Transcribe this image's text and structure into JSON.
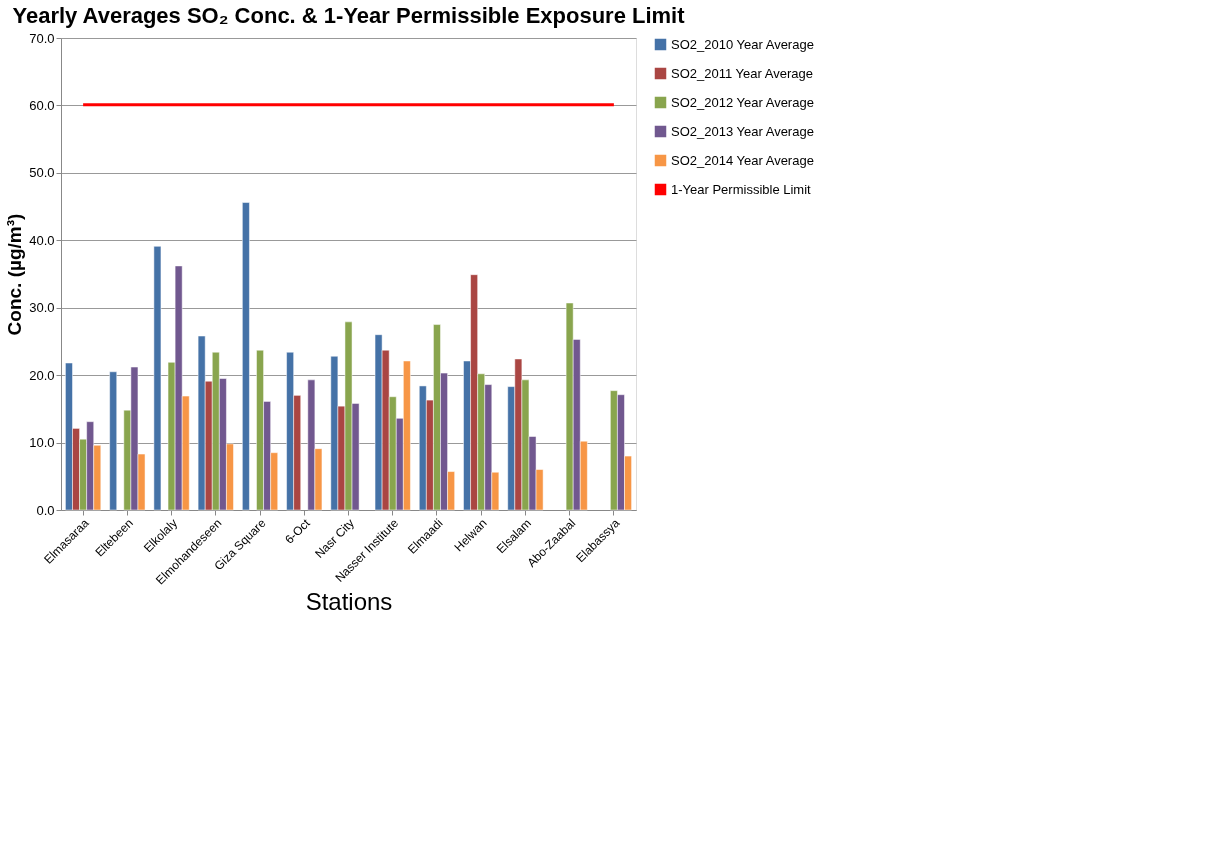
{
  "chart_data": {
    "type": "bar",
    "title": "Yearly Averages SO₂ Conc. & 1-Year Permissible Exposure Limit",
    "xlabel": "Stations",
    "ylabel": "Conc. (µg/m³)",
    "categories": [
      "Elmasaraa",
      "Eltebeen",
      "Elkolaly",
      "Elmohandeseen",
      "Giza Square",
      "6-Oct",
      "Nasr City",
      "Nasser Institute",
      "Elmaadi",
      "Helwan",
      "Elsalam",
      "Abo-Zaabal",
      "Elabassya"
    ],
    "series": [
      {
        "name": "SO2_2010 Year Average",
        "color": "#4572a7",
        "values": [
          21.8,
          20.5,
          39.1,
          25.8,
          45.6,
          23.4,
          22.8,
          26.0,
          18.4,
          22.1,
          18.3,
          null,
          null
        ]
      },
      {
        "name": "SO2_2011 Year Average",
        "color": "#aa4643",
        "values": [
          12.1,
          null,
          null,
          19.1,
          null,
          17.0,
          15.4,
          23.7,
          16.3,
          34.9,
          22.4,
          null,
          null
        ]
      },
      {
        "name": "SO2_2012 Year Average",
        "color": "#89a54e",
        "values": [
          10.5,
          14.8,
          21.9,
          23.4,
          23.7,
          null,
          27.9,
          16.8,
          27.5,
          20.2,
          19.3,
          30.7,
          17.7
        ]
      },
      {
        "name": "SO2_2013 Year Average",
        "color": "#71588f",
        "values": [
          13.1,
          21.2,
          36.2,
          19.5,
          16.1,
          19.3,
          15.8,
          13.6,
          20.3,
          18.6,
          10.9,
          25.3,
          17.1
        ]
      },
      {
        "name": "SO2_2014 Year Average",
        "color": "#f79646",
        "values": [
          9.6,
          8.3,
          16.9,
          9.8,
          8.5,
          9.1,
          null,
          22.1,
          5.7,
          5.6,
          6.0,
          10.2,
          8.0
        ]
      },
      {
        "name": "1-Year Permissible Limit",
        "type": "line",
        "color": "#ff0000",
        "values": [
          60.1,
          60.1,
          60.1,
          60.1,
          60.1,
          60.1,
          60.1,
          60.1,
          60.1,
          60.1,
          60.1,
          60.1,
          60.1
        ]
      }
    ],
    "ylim": [
      0,
      70
    ],
    "yticks": [
      {
        "value": 0,
        "label": "0.0"
      },
      {
        "value": 10,
        "label": "10.0"
      },
      {
        "value": 20,
        "label": "20.0"
      },
      {
        "value": 30,
        "label": "30.0"
      },
      {
        "value": 40,
        "label": "40.0"
      },
      {
        "value": 50,
        "label": "50.0"
      },
      {
        "value": 60,
        "label": "60.0"
      },
      {
        "value": 70,
        "label": "70.0"
      }
    ],
    "grid": "y",
    "legend": "right",
    "marker": "none",
    "line_style": "solid"
  }
}
